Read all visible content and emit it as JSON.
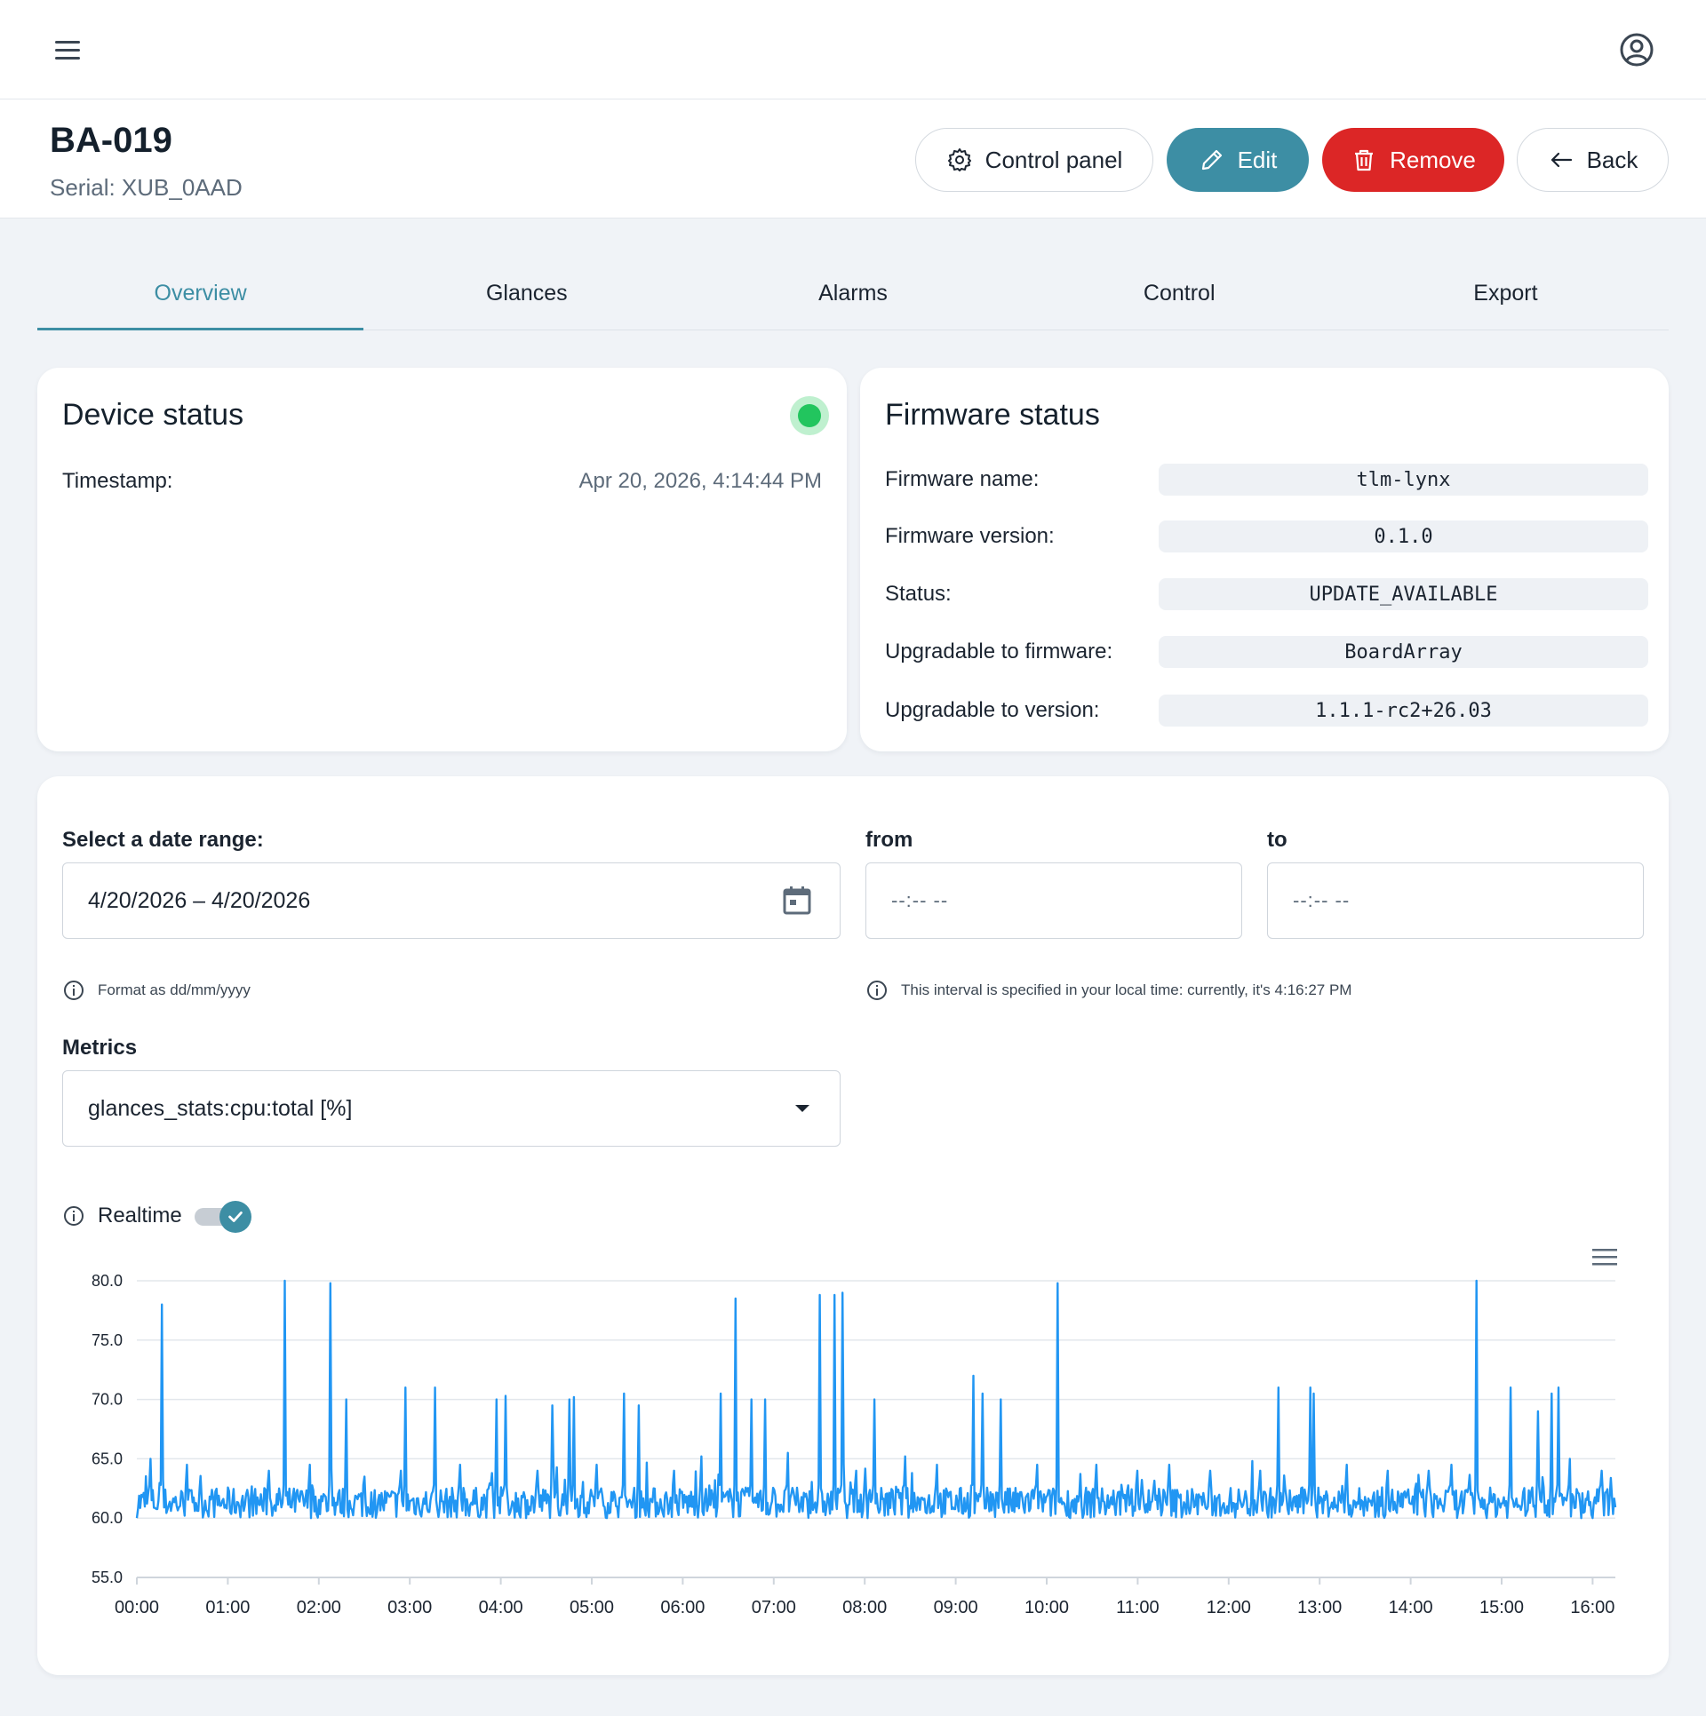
{
  "topbar": {
    "menu_icon": "hamburger-menu-icon",
    "user_icon": "user-circle-icon"
  },
  "device": {
    "title": "BA-019",
    "serial": "Serial: XUB_0AAD"
  },
  "actions": {
    "control_panel_label": "Control panel",
    "edit_label": "Edit",
    "remove_label": "Remove",
    "back_label": "Back"
  },
  "colors": {
    "accent": "#3d8ea4",
    "danger": "#dc2626",
    "online": "#22c55e",
    "series": "#2196f3"
  },
  "tabs": [
    {
      "label": "Overview",
      "active": true
    },
    {
      "label": "Glances",
      "active": false
    },
    {
      "label": "Alarms",
      "active": false
    },
    {
      "label": "Control",
      "active": false
    },
    {
      "label": "Export",
      "active": false
    }
  ],
  "device_status": {
    "title": "Device status",
    "timestamp_label": "Timestamp:",
    "timestamp_value": "Apr 20, 2026, 4:14:44 PM"
  },
  "firmware_status": {
    "title": "Firmware status",
    "rows": [
      {
        "label": "Firmware name:",
        "value": "tlm-lynx"
      },
      {
        "label": "Firmware version:",
        "value": "0.1.0"
      },
      {
        "label": "Status:",
        "value": "UPDATE_AVAILABLE"
      },
      {
        "label": "Upgradable to firmware:",
        "value": "BoardArray"
      },
      {
        "label": "Upgradable to version:",
        "value": "1.1.1-rc2+26.03"
      }
    ]
  },
  "metrics_panel": {
    "date_range_label": "Select a date range:",
    "date_range_value": "4/20/2026 – 4/20/2026",
    "from_label": "from",
    "from_placeholder": "--:-- --",
    "to_label": "to",
    "to_placeholder": "--:-- --",
    "date_hint": "Format as dd/mm/yyyy",
    "interval_hint": "This interval is specified in your local time: currently, it's 4:16:27 PM",
    "metrics_label": "Metrics",
    "metrics_value": "glances_stats:cpu:total [%]",
    "realtime_label": "Realtime",
    "realtime_on": true
  },
  "chart_data": {
    "type": "line",
    "title": "",
    "xlabel": "",
    "ylabel": "",
    "ylim": [
      55,
      80
    ],
    "y_ticks": [
      "55.0",
      "60.0",
      "65.0",
      "70.0",
      "75.0",
      "80.0"
    ],
    "x_ticks": [
      "00:00",
      "01:00",
      "02:00",
      "03:00",
      "04:00",
      "05:00",
      "06:00",
      "07:00",
      "08:00",
      "09:00",
      "10:00",
      "11:00",
      "12:00",
      "13:00",
      "14:00",
      "15:00",
      "16:00"
    ],
    "xlim_hours": [
      0,
      16.25
    ],
    "grid": true,
    "baseline": 61.3,
    "noise": 1.0,
    "spikes": [
      [
        0.15,
        65.0
      ],
      [
        0.28,
        78.0
      ],
      [
        0.55,
        64.5
      ],
      [
        1.45,
        64.0
      ],
      [
        1.63,
        80.0
      ],
      [
        1.9,
        64.5
      ],
      [
        2.13,
        79.8
      ],
      [
        2.3,
        70.0
      ],
      [
        2.5,
        63.5
      ],
      [
        2.9,
        64.0
      ],
      [
        2.95,
        71.0
      ],
      [
        3.28,
        71.0
      ],
      [
        3.55,
        64.5
      ],
      [
        3.9,
        63.8
      ],
      [
        3.95,
        70.0
      ],
      [
        4.05,
        70.3
      ],
      [
        4.4,
        64.0
      ],
      [
        4.57,
        69.5
      ],
      [
        4.75,
        70.0
      ],
      [
        4.8,
        70.2
      ],
      [
        5.05,
        64.5
      ],
      [
        5.35,
        70.5
      ],
      [
        5.52,
        69.5
      ],
      [
        5.9,
        64.0
      ],
      [
        6.2,
        65.2
      ],
      [
        6.42,
        70.5
      ],
      [
        6.58,
        78.5
      ],
      [
        6.75,
        70.0
      ],
      [
        6.9,
        70.0
      ],
      [
        7.15,
        65.5
      ],
      [
        7.5,
        78.8
      ],
      [
        7.67,
        78.8
      ],
      [
        7.75,
        79.0
      ],
      [
        7.9,
        64.0
      ],
      [
        8.1,
        70.0
      ],
      [
        8.45,
        65.2
      ],
      [
        8.8,
        64.5
      ],
      [
        9.2,
        72.0
      ],
      [
        9.3,
        70.5
      ],
      [
        9.5,
        70.0
      ],
      [
        9.9,
        64.5
      ],
      [
        10.12,
        79.8
      ],
      [
        10.55,
        64.5
      ],
      [
        11.0,
        64.0
      ],
      [
        11.35,
        64.5
      ],
      [
        11.8,
        64.0
      ],
      [
        12.35,
        64.0
      ],
      [
        12.55,
        71.0
      ],
      [
        12.9,
        71.0
      ],
      [
        12.93,
        70.5
      ],
      [
        13.3,
        64.5
      ],
      [
        13.75,
        64.0
      ],
      [
        14.2,
        64.0
      ],
      [
        14.45,
        64.5
      ],
      [
        14.72,
        80.0
      ],
      [
        15.1,
        71.0
      ],
      [
        15.4,
        69.0
      ],
      [
        15.55,
        70.5
      ],
      [
        15.62,
        71.0
      ],
      [
        15.75,
        65.0
      ],
      [
        16.1,
        64.0
      ]
    ]
  }
}
